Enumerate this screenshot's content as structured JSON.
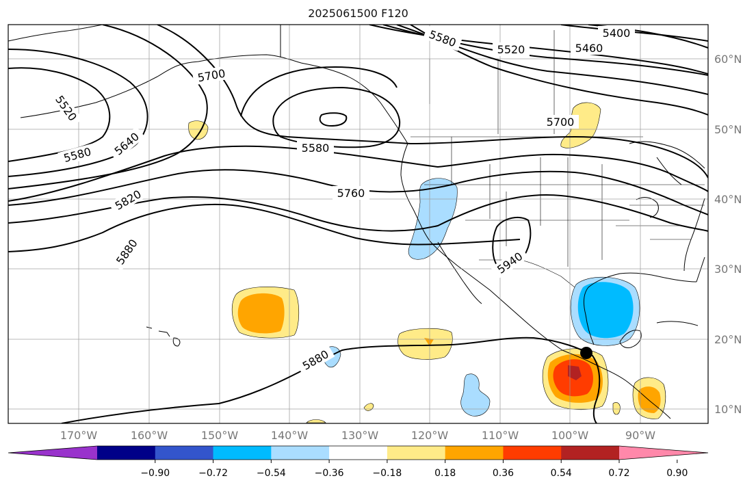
{
  "title": "2025061500 F120",
  "longitude_labels": [
    "170°W",
    "160°W",
    "150°W",
    "140°W",
    "130°W",
    "120°W",
    "110°W",
    "100°W",
    "90°W"
  ],
  "latitude_labels": [
    "10°N",
    "20°N",
    "30°N",
    "40°N",
    "50°N",
    "60°N"
  ],
  "contour_labels": [
    {
      "text": "5400",
      "rot": 0
    },
    {
      "text": "5460",
      "rot": 0
    },
    {
      "text": "5520",
      "rot": 0
    },
    {
      "text": "5580",
      "rot": 20
    },
    {
      "text": "5700",
      "rot": -10
    },
    {
      "text": "5640",
      "rot": -40
    },
    {
      "text": "5520",
      "rot": 55
    },
    {
      "text": "5580",
      "rot": -15
    },
    {
      "text": "5580",
      "rot": 0
    },
    {
      "text": "5700",
      "rot": 0
    },
    {
      "text": "5760",
      "rot": 0
    },
    {
      "text": "5820",
      "rot": -30
    },
    {
      "text": "5880",
      "rot": -55
    },
    {
      "text": "5940",
      "rot": -35
    },
    {
      "text": "5880",
      "rot": -30
    }
  ],
  "colorbar": {
    "colors": [
      "#9933cc",
      "#000088",
      "#3355cc",
      "#00bbff",
      "#aaddff",
      "#ffffff",
      "#ffeb88",
      "#ffa500",
      "#ff3c00",
      "#b22222",
      "#ff88aa"
    ],
    "tick_labels": [
      "−0.90",
      "−0.72",
      "−0.54",
      "−0.36",
      "−0.18",
      "0.18",
      "0.36",
      "0.54",
      "0.72",
      "0.90"
    ]
  },
  "colors": {
    "contour": "#000000",
    "grid": "#999999",
    "pos1": "#ffeb88",
    "pos2": "#ffa500",
    "pos3": "#ff3c00",
    "pos4": "#b22222",
    "neg1": "#aaddff",
    "neg2": "#00bbff"
  },
  "marker": "storm-center-dot"
}
